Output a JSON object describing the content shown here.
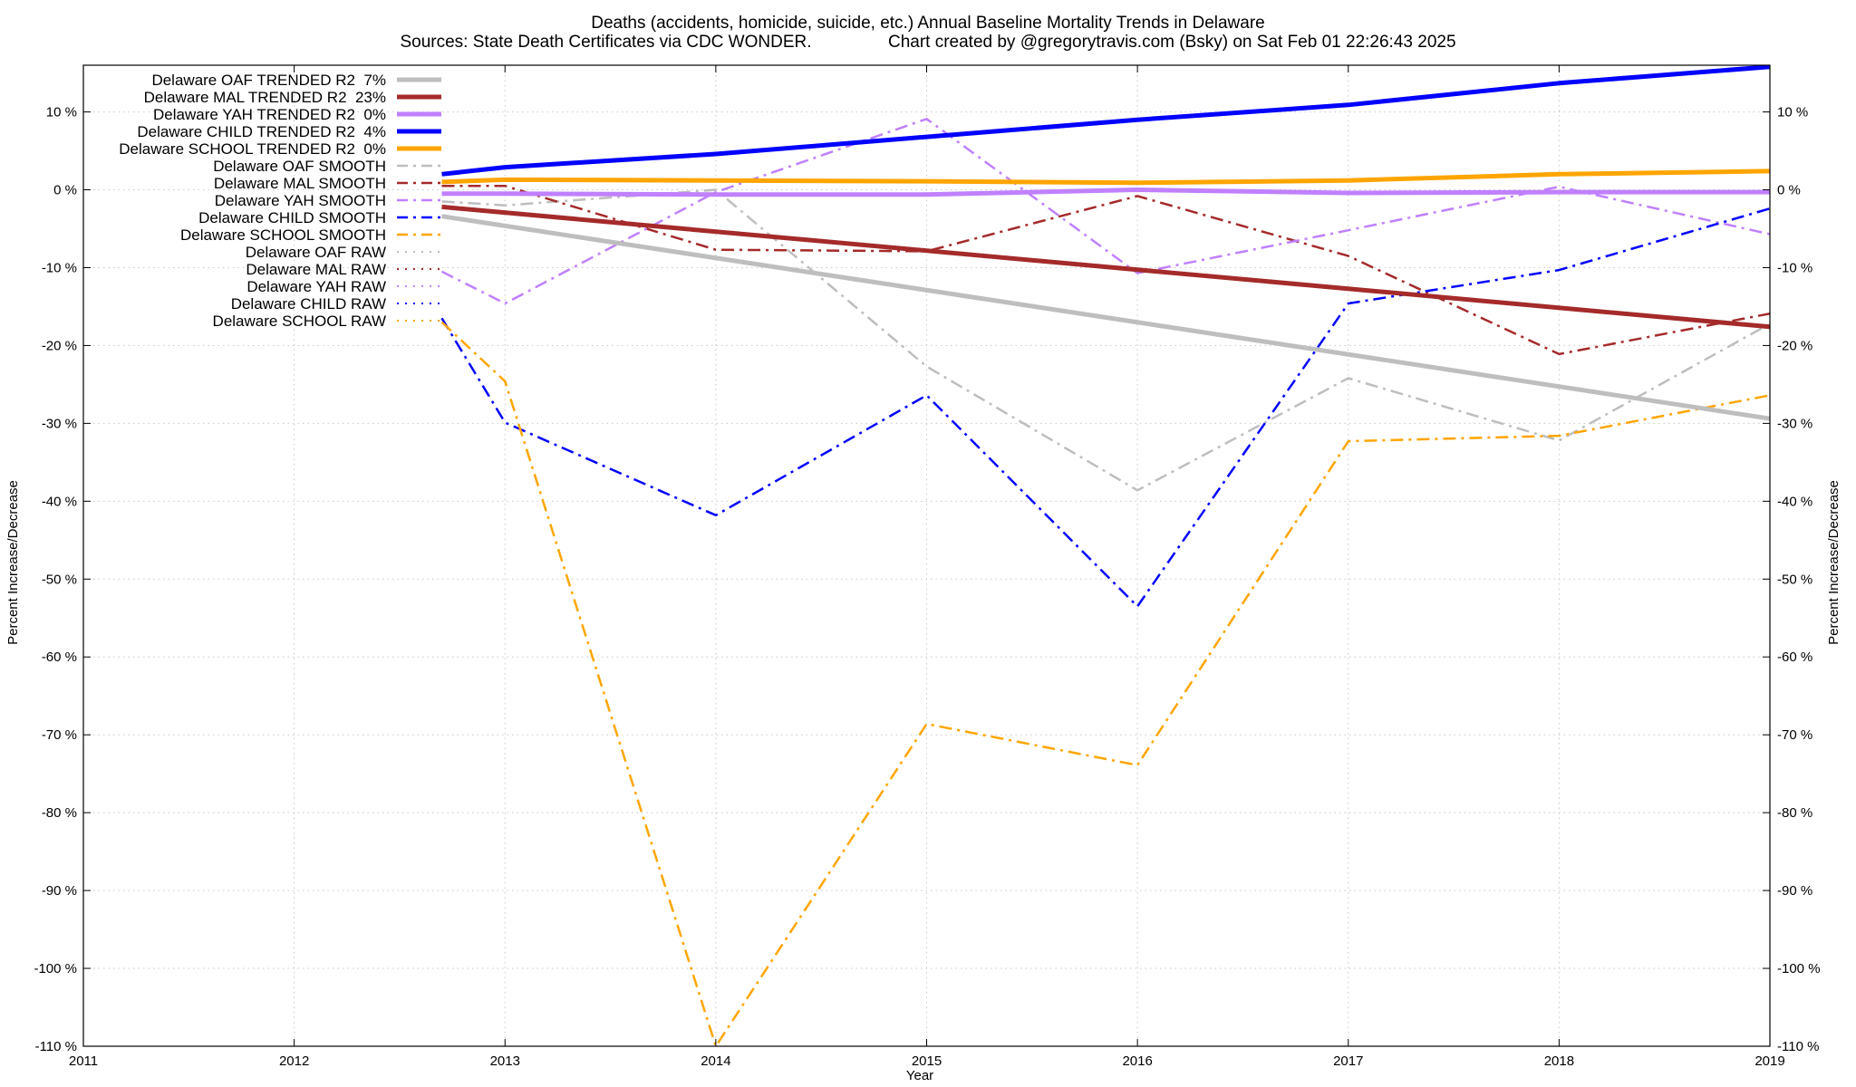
{
  "chart_data": {
    "type": "line",
    "title": "Deaths (accidents, homicide, suicide, etc.)  Annual Baseline Mortality Trends in Delaware",
    "subtitle": "Sources: State Death Certificates via CDC WONDER.                Chart created by @gregorytravis.com (Bsky) on Sat Feb 01 22:26:43 2025",
    "xlabel": "Year",
    "ylabel": "Percent Increase/Decrease",
    "y2label": "Percent Increase/Decrease",
    "xlim": [
      2011,
      2019
    ],
    "ylim": [
      -110,
      16
    ],
    "x_ticks": [
      "2011",
      "2012",
      "2013",
      "2014",
      "2015",
      "2016",
      "2017",
      "2018",
      "2019"
    ],
    "y_ticks": [
      10,
      0,
      -10,
      -20,
      -30,
      -40,
      -50,
      -60,
      -70,
      -80,
      -90,
      -100,
      -110
    ],
    "y_tick_labels": [
      "10 %",
      "0 %",
      "-10 %",
      "-20 %",
      "-30 %",
      "-40 %",
      "-50 %",
      "-60 %",
      "-70 %",
      "-80 %",
      "-90 %",
      "-100 %",
      "-110 %"
    ],
    "grid": true,
    "legend_position": "top-left",
    "series": [
      {
        "name": "Delaware OAF TRENDED R2  7%",
        "color": "#bebebe",
        "style": "trend",
        "x": [
          2012.7,
          2019
        ],
        "y": [
          -3.4,
          -29.4
        ]
      },
      {
        "name": "Delaware MAL TRENDED R2  23%",
        "color": "#a52a2a",
        "style": "trend",
        "x": [
          2012.7,
          2019
        ],
        "y": [
          -2.2,
          -17.6
        ]
      },
      {
        "name": "Delaware YAH TRENDED R2  0%",
        "color": "#c080ff",
        "style": "trend",
        "x": [
          2012.7,
          2013,
          2014,
          2015,
          2016,
          2017,
          2018,
          2019
        ],
        "y": [
          -0.5,
          -0.5,
          -0.6,
          -0.6,
          0,
          -0.4,
          -0.3,
          -0.3
        ]
      },
      {
        "name": "Delaware CHILD TRENDED R2  4%",
        "color": "#0000ff",
        "style": "trend",
        "x": [
          2012.7,
          2013,
          2014,
          2015,
          2016,
          2017,
          2018,
          2019
        ],
        "y": [
          2.0,
          2.9,
          4.6,
          6.8,
          9.0,
          10.9,
          13.7,
          15.8
        ]
      },
      {
        "name": "Delaware SCHOOL TRENDED R2  0%",
        "color": "#ffa500",
        "style": "trend",
        "x": [
          2012.7,
          2013,
          2014,
          2015,
          2016,
          2017,
          2018,
          2019
        ],
        "y": [
          1.0,
          1.3,
          1.2,
          1.1,
          0.9,
          1.2,
          2.0,
          2.4
        ]
      },
      {
        "name": "Delaware OAF SMOOTH",
        "color": "#bebebe",
        "style": "smooth",
        "x": [
          2012.7,
          2013,
          2014,
          2015,
          2016,
          2017,
          2018,
          2019
        ],
        "y": [
          -1.5,
          -2.0,
          0.0,
          -22.7,
          -38.6,
          -24.2,
          -32.2,
          -17.2
        ]
      },
      {
        "name": "Delaware MAL SMOOTH",
        "color": "#a52a2a",
        "style": "smooth",
        "x": [
          2012.7,
          2013,
          2014,
          2015,
          2016,
          2017,
          2018,
          2019
        ],
        "y": [
          0.5,
          0.5,
          -7.7,
          -7.9,
          -0.8,
          -8.5,
          -21.1,
          -15.9
        ]
      },
      {
        "name": "Delaware YAH SMOOTH",
        "color": "#c080ff",
        "style": "smooth",
        "x": [
          2012.7,
          2013,
          2014,
          2015,
          2016,
          2017,
          2018,
          2019
        ],
        "y": [
          -10.5,
          -14.6,
          -0.3,
          9.1,
          -10.7,
          -5.2,
          0.4,
          -5.7
        ]
      },
      {
        "name": "Delaware CHILD SMOOTH",
        "color": "#0000ff",
        "style": "smooth",
        "x": [
          2012.7,
          2013,
          2014,
          2015,
          2016,
          2017,
          2018,
          2019
        ],
        "y": [
          -16.5,
          -29.9,
          -41.8,
          -26.4,
          -53.5,
          -14.6,
          -10.3,
          -2.4
        ]
      },
      {
        "name": "Delaware SCHOOL SMOOTH",
        "color": "#ffa500",
        "style": "smooth",
        "x": [
          2012.7,
          2013,
          2014,
          2015,
          2016,
          2017,
          2018,
          2019
        ],
        "y": [
          -17.0,
          -24.6,
          -110.0,
          -68.6,
          -73.9,
          -32.3,
          -31.6,
          -26.4
        ]
      },
      {
        "name": "Delaware OAF RAW",
        "color": "#bebebe",
        "style": "raw",
        "x": [],
        "y": []
      },
      {
        "name": "Delaware MAL RAW",
        "color": "#a52a2a",
        "style": "raw",
        "x": [],
        "y": []
      },
      {
        "name": "Delaware YAH RAW",
        "color": "#c080ff",
        "style": "raw",
        "x": [],
        "y": []
      },
      {
        "name": "Delaware CHILD RAW",
        "color": "#0000ff",
        "style": "raw",
        "x": [],
        "y": []
      },
      {
        "name": "Delaware SCHOOL RAW",
        "color": "#ffa500",
        "style": "raw",
        "x": [],
        "y": []
      }
    ]
  }
}
